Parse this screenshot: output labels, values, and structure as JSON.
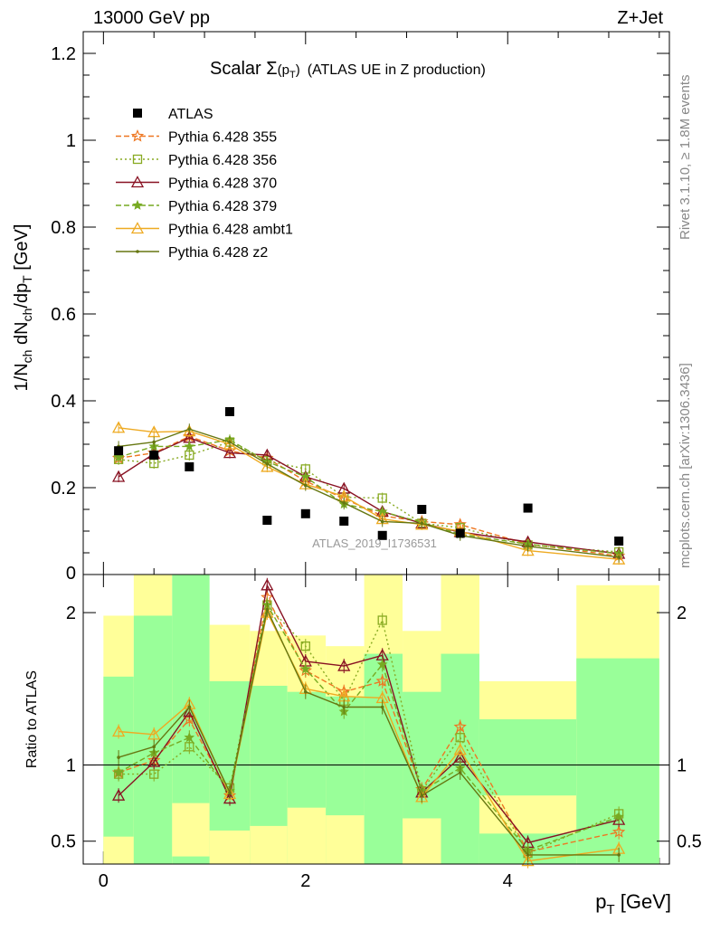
{
  "header": {
    "energy": "13000 GeV pp",
    "process": "Z+Jet"
  },
  "side_labels": {
    "rivet": "Rivet 3.1.10, ≥ 1.8M events",
    "mcplots": "mcplots.cern.ch [arXiv:1306.3436]"
  },
  "chart_data": {
    "type": "line",
    "title_main": "Scalar Σ",
    "title_sub": "(p",
    "title_subT": "T",
    "title_close": ")",
    "title_rest": "(ATLAS UE in Z production)",
    "analysis_label": "ATLAS_2019_I1736531",
    "ylabel_main": "1/N_ch dN_ch/dp_T [GeV]",
    "ylabel_ratio": "Ratio to ATLAS",
    "xlabel": "p_T [GeV]",
    "xlim": [
      -0.2,
      5.6
    ],
    "ylim_main": [
      0,
      1.25
    ],
    "ylim_ratio": [
      0.35,
      2.25
    ],
    "x_ticks": [
      0,
      2,
      4
    ],
    "x_tick_labels": [
      "0",
      "2",
      "4"
    ],
    "y_ticks_main": [
      0.2,
      0.4,
      0.6,
      0.8,
      1.0,
      1.2
    ],
    "y_tick_labels_main": [
      "0.2",
      "0.4",
      "0.6",
      "0.8",
      "1",
      "1.2"
    ],
    "y_ticks_ratio": [
      0.5,
      1,
      2
    ],
    "y_tick_labels_ratio": [
      "0.5",
      "1",
      "2"
    ],
    "main_zero_label": "0",
    "x": [
      0.15,
      0.5,
      0.85,
      1.25,
      1.62,
      2.0,
      2.38,
      2.76,
      3.15,
      3.53,
      4.2,
      5.1
    ],
    "bins": [
      [
        0.0,
        0.3
      ],
      [
        0.3,
        0.68
      ],
      [
        0.68,
        1.05
      ],
      [
        1.05,
        1.45
      ],
      [
        1.45,
        1.82
      ],
      [
        1.82,
        2.2
      ],
      [
        2.2,
        2.58
      ],
      [
        2.58,
        2.96
      ],
      [
        2.96,
        3.34
      ],
      [
        3.34,
        3.72
      ],
      [
        3.72,
        4.68
      ],
      [
        4.68,
        5.5
      ]
    ],
    "data": {
      "name": "ATLAS",
      "values": [
        0.285,
        0.275,
        0.248,
        0.375,
        0.125,
        0.14,
        0.123,
        0.09,
        0.15,
        0.095,
        0.153,
        0.077
      ]
    },
    "series": [
      {
        "name": "Pythia 6.428 355",
        "color": "#ee7722",
        "marker": "star",
        "dash": "6,3",
        "values": [
          0.268,
          0.28,
          0.318,
          0.285,
          0.268,
          0.215,
          0.175,
          0.135,
          0.122,
          0.115,
          0.07,
          0.043
        ]
      },
      {
        "name": "Pythia 6.428 356",
        "color": "#88aa22",
        "marker": "square-open",
        "dash": "2,3",
        "values": [
          0.265,
          0.256,
          0.275,
          0.305,
          0.262,
          0.243,
          0.178,
          0.176,
          0.118,
          0.108,
          0.068,
          0.052
        ]
      },
      {
        "name": "Pythia 6.428 370",
        "color": "#881122",
        "marker": "triangle-open",
        "dash": "",
        "values": [
          0.225,
          0.278,
          0.315,
          0.28,
          0.275,
          0.225,
          0.198,
          0.145,
          0.118,
          0.098,
          0.075,
          0.048
        ]
      },
      {
        "name": "Pythia 6.428 379",
        "color": "#77aa22",
        "marker": "star-small",
        "dash": "6,3",
        "values": [
          0.27,
          0.295,
          0.295,
          0.31,
          0.26,
          0.225,
          0.162,
          0.145,
          0.12,
          0.093,
          0.07,
          0.048
        ]
      },
      {
        "name": "Pythia 6.428 ambt1",
        "color": "#eeaa22",
        "marker": "triangle-open",
        "dash": "",
        "values": [
          0.338,
          0.328,
          0.33,
          0.3,
          0.248,
          0.208,
          0.18,
          0.128,
          0.115,
          0.1,
          0.055,
          0.035
        ]
      },
      {
        "name": "Pythia 6.428 z2",
        "color": "#667711",
        "marker": "dot",
        "dash": "",
        "values": [
          0.295,
          0.305,
          0.335,
          0.305,
          0.255,
          0.205,
          0.165,
          0.122,
          0.118,
          0.09,
          0.065,
          0.04
        ]
      }
    ],
    "ratio_series": [
      [
        0.95,
        1.03,
        1.3,
        0.8,
        2.1,
        1.62,
        1.48,
        1.55,
        0.84,
        1.25,
        0.43,
        0.56
      ],
      [
        0.94,
        0.94,
        1.12,
        0.85,
        2.05,
        1.78,
        1.42,
        1.95,
        0.83,
        1.18,
        0.42,
        0.68
      ],
      [
        0.8,
        1.02,
        1.35,
        0.78,
        2.18,
        1.68,
        1.65,
        1.72,
        0.82,
        1.05,
        0.49,
        0.64
      ],
      [
        0.95,
        1.08,
        1.18,
        0.83,
        2.05,
        1.63,
        1.35,
        1.66,
        0.83,
        0.98,
        0.44,
        0.66
      ],
      [
        1.22,
        1.2,
        1.4,
        0.81,
        2.0,
        1.5,
        1.45,
        1.44,
        0.79,
        1.1,
        0.37,
        0.45
      ],
      [
        1.05,
        1.12,
        1.38,
        0.82,
        2.02,
        1.48,
        1.38,
        1.38,
        0.8,
        0.95,
        0.41,
        0.41
      ]
    ],
    "bands_inner": [
      [
        0.35,
        1.58
      ],
      [
        0.35,
        1.98
      ],
      [
        0.35,
        2.25
      ],
      [
        0.35,
        1.55
      ],
      [
        0.35,
        1.52
      ],
      [
        0.35,
        1.48
      ],
      [
        0.35,
        1.45
      ],
      [
        0.35,
        1.73
      ],
      [
        0.35,
        1.48
      ],
      [
        0.35,
        1.73
      ],
      [
        0.35,
        1.3
      ],
      [
        0.35,
        1.7
      ]
    ],
    "bands_outer": [
      [
        0.35,
        1.98
      ],
      [
        0.35,
        2.25
      ],
      [
        0.35,
        1.65
      ],
      [
        0.35,
        1.92
      ],
      [
        0.35,
        1.88
      ],
      [
        0.35,
        1.85
      ],
      [
        0.35,
        1.78
      ],
      [
        0.35,
        2.25
      ],
      [
        0.35,
        1.88
      ],
      [
        0.35,
        2.25
      ],
      [
        0.35,
        1.55
      ],
      [
        0.35,
        2.18
      ]
    ],
    "bands_hole": [
      [
        0.35,
        0.53
      ],
      null,
      [
        0.4,
        0.75
      ],
      [
        0.35,
        0.57
      ],
      [
        0.35,
        0.6
      ],
      [
        0.35,
        0.72
      ],
      [
        0.35,
        0.67
      ],
      null,
      [
        0.35,
        0.65
      ],
      null,
      [
        0.55,
        0.8
      ],
      null
    ],
    "legend_position": "top-left",
    "grid": false
  }
}
